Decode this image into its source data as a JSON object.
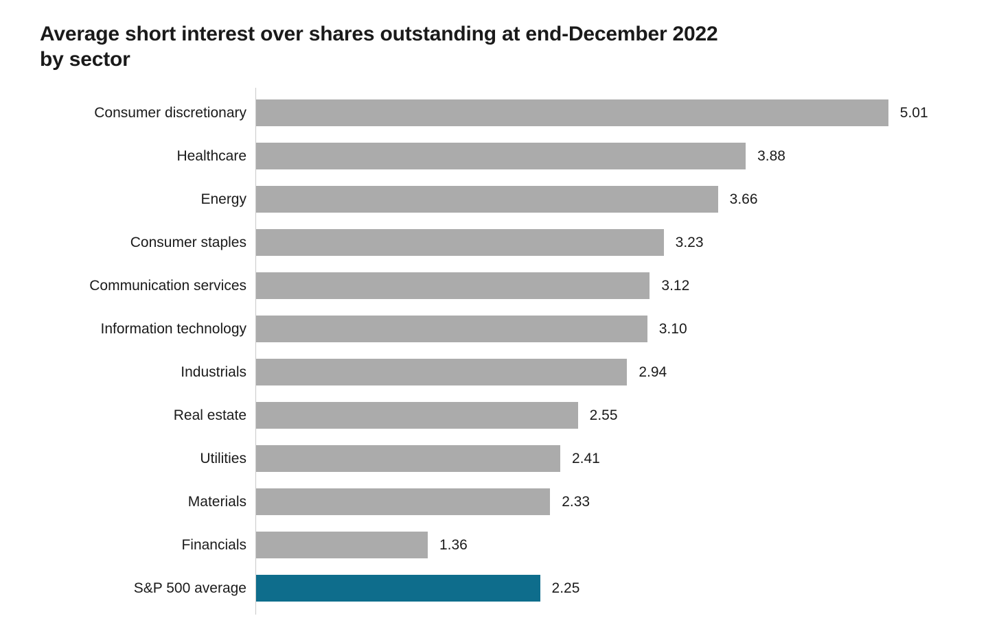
{
  "header": {
    "title_line1": "Average short interest over shares outstanding at end-December 2022",
    "title_line2": "by sector"
  },
  "chart_data": {
    "type": "bar",
    "orientation": "horizontal",
    "title": "Average short interest over shares outstanding at end-December 2022 by sector",
    "categories": [
      "Consumer discretionary",
      "Healthcare",
      "Energy",
      "Consumer staples",
      "Communication services",
      "Information technology",
      "Industrials",
      "Real estate",
      "Utilities",
      "Materials",
      "Financials",
      "S&P 500 average"
    ],
    "values": [
      5.01,
      3.88,
      3.66,
      3.23,
      3.12,
      3.1,
      2.94,
      2.55,
      2.41,
      2.33,
      1.36,
      2.25
    ],
    "value_labels": [
      "5.01",
      "3.88",
      "3.66",
      "3.23",
      "3.12",
      "3.10",
      "2.94",
      "2.55",
      "2.41",
      "2.33",
      "1.36",
      "2.25"
    ],
    "xlabel": "",
    "ylabel": "",
    "xlim": [
      0,
      5.8
    ],
    "grid": false,
    "legend": false,
    "data_labels": true,
    "highlight_index": 11,
    "colors": {
      "bar_default": "#ababab",
      "bar_highlight": "#0e6d8c",
      "axis_line": "#c9c9c9",
      "text": "#1a1a1a",
      "background": "#ffffff"
    }
  }
}
